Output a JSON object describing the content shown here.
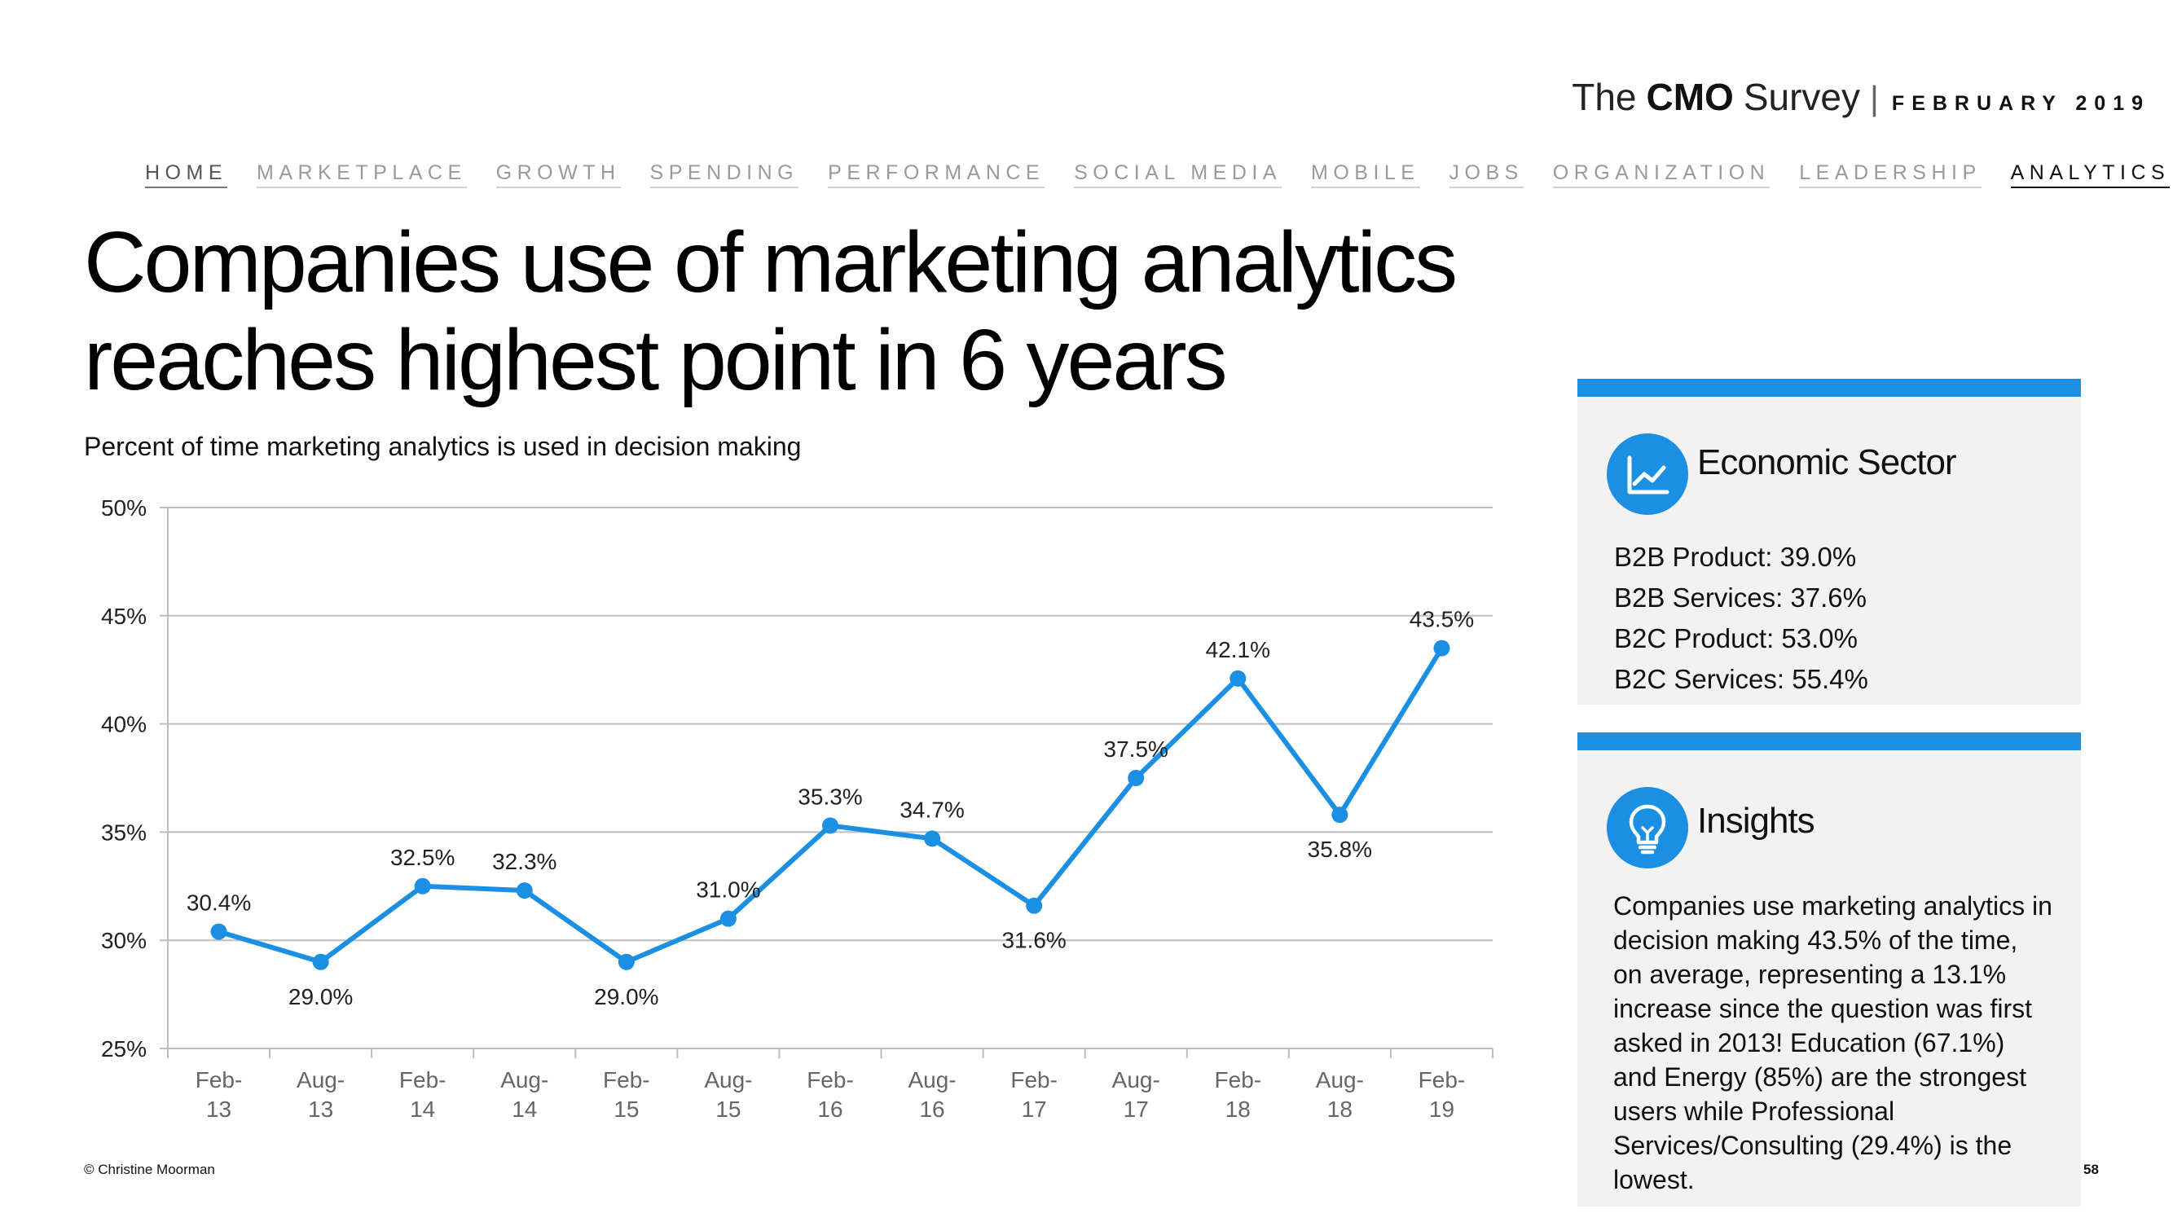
{
  "brand": {
    "the": "The",
    "cmo": "CMO",
    "survey": "Survey",
    "separator": "|",
    "date": "FEBRUARY 2019"
  },
  "nav": [
    "HOME",
    "MARKETPLACE",
    "GROWTH",
    "SPENDING",
    "PERFORMANCE",
    "SOCIAL MEDIA",
    "MOBILE",
    "JOBS",
    "ORGANIZATION",
    "LEADERSHIP",
    "ANALYTICS"
  ],
  "title": "Companies use of marketing analytics reaches highest point in 6 years",
  "subtitle": "Percent of time marketing analytics is used in decision making",
  "chart_data": {
    "type": "line",
    "categories": [
      "Feb-13",
      "Aug-13",
      "Feb-14",
      "Aug-14",
      "Feb-15",
      "Aug-15",
      "Feb-16",
      "Aug-16",
      "Feb-17",
      "Aug-17",
      "Feb-18",
      "Aug-18",
      "Feb-19"
    ],
    "category_lines": [
      [
        "Feb-",
        "13"
      ],
      [
        "Aug-",
        "13"
      ],
      [
        "Feb-",
        "14"
      ],
      [
        "Aug-",
        "14"
      ],
      [
        "Feb-",
        "15"
      ],
      [
        "Aug-",
        "15"
      ],
      [
        "Feb-",
        "16"
      ],
      [
        "Aug-",
        "16"
      ],
      [
        "Feb-",
        "17"
      ],
      [
        "Aug-",
        "17"
      ],
      [
        "Feb-",
        "18"
      ],
      [
        "Aug-",
        "18"
      ],
      [
        "Feb-",
        "19"
      ]
    ],
    "values": [
      30.4,
      29.0,
      32.5,
      32.3,
      29.0,
      31.0,
      35.3,
      34.7,
      31.6,
      37.5,
      42.1,
      35.8,
      43.5
    ],
    "data_labels": [
      "30.4%",
      "29.0%",
      "32.5%",
      "32.3%",
      "29.0%",
      "31.0%",
      "35.3%",
      "34.7%",
      "31.6%",
      "37.5%",
      "42.1%",
      "35.8%",
      "43.5%"
    ],
    "label_position": [
      "above",
      "below",
      "above",
      "above",
      "below",
      "above",
      "above",
      "above",
      "below",
      "above",
      "above",
      "below",
      "above"
    ],
    "ylim": [
      25,
      50
    ],
    "yticks": [
      25,
      30,
      35,
      40,
      45,
      50
    ],
    "ytick_labels": [
      "25%",
      "30%",
      "35%",
      "40%",
      "45%",
      "50%"
    ],
    "grid": true,
    "line_color": "#1a8fe3"
  },
  "econ": {
    "title": "Economic Sector",
    "icon": "line-chart-icon",
    "items": [
      "B2B Product: 39.0%",
      "B2B Services: 37.6%",
      "B2C Product: 53.0%",
      "B2C Services: 55.4%"
    ]
  },
  "insights": {
    "title": "Insights",
    "icon": "lightbulb-icon",
    "text": "Companies use marketing analytics in decision making 43.5% of the time, on average, representing a 13.1% increase since the question was first asked in 2013! Education (67.1%) and Energy (85%) are the strongest users while Professional Services/Consulting (29.4%) is the lowest."
  },
  "footer": "© Christine Moorman",
  "page_number": "58",
  "accent_color": "#1a8fe3"
}
